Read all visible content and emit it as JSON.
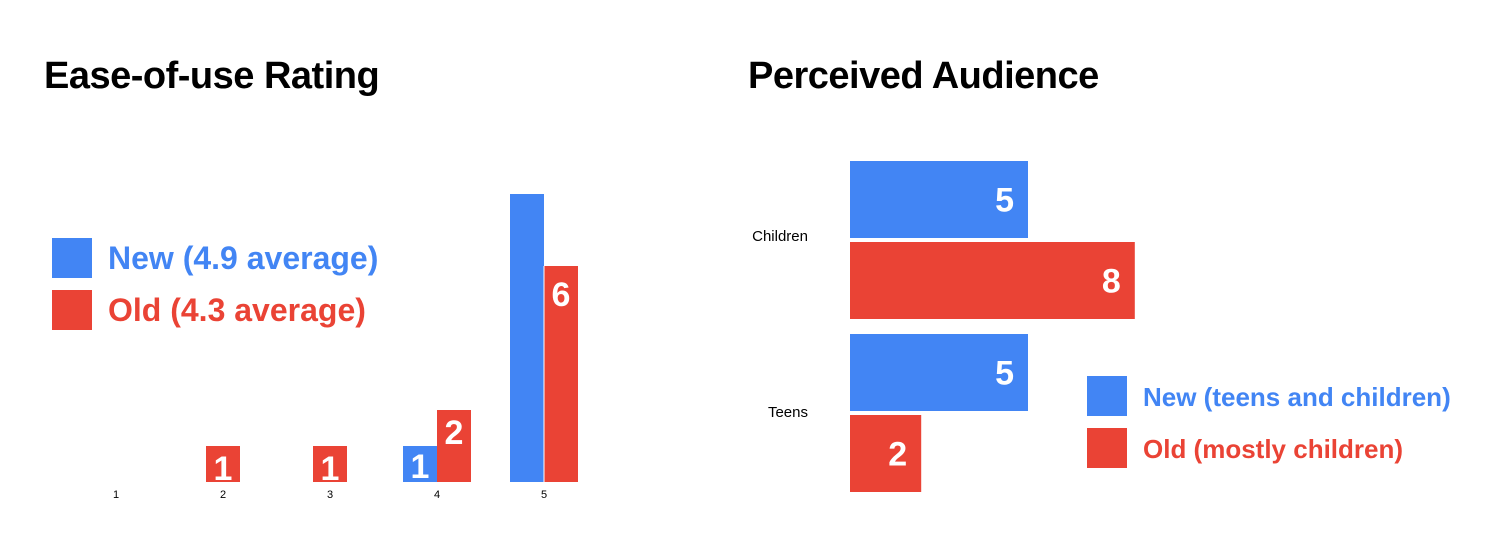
{
  "colors": {
    "new": "#4285f4",
    "old": "#ea4335"
  },
  "chart_data": [
    {
      "type": "bar",
      "title": "Ease-of-use Rating",
      "categories": [
        "1",
        "2",
        "3",
        "4",
        "5"
      ],
      "series": [
        {
          "name": "New (4.9 average)",
          "values": [
            0,
            0,
            0,
            1,
            8
          ]
        },
        {
          "name": "Old (4.3 average)",
          "values": [
            0,
            1,
            1,
            2,
            6
          ]
        }
      ],
      "data_labels": {
        "new": [
          "",
          "",
          "",
          "1",
          ""
        ],
        "old": [
          "",
          "1",
          "1",
          "2",
          "6"
        ]
      },
      "legend": "left"
    },
    {
      "type": "bar",
      "orientation": "horizontal",
      "title": "Perceived Audience",
      "categories": [
        "Children",
        "Teens"
      ],
      "series": [
        {
          "name": "New (teens and children)",
          "values": [
            5,
            5
          ]
        },
        {
          "name": "Old (mostly children)",
          "values": [
            8,
            2
          ]
        }
      ],
      "legend": "bottom-right"
    }
  ]
}
